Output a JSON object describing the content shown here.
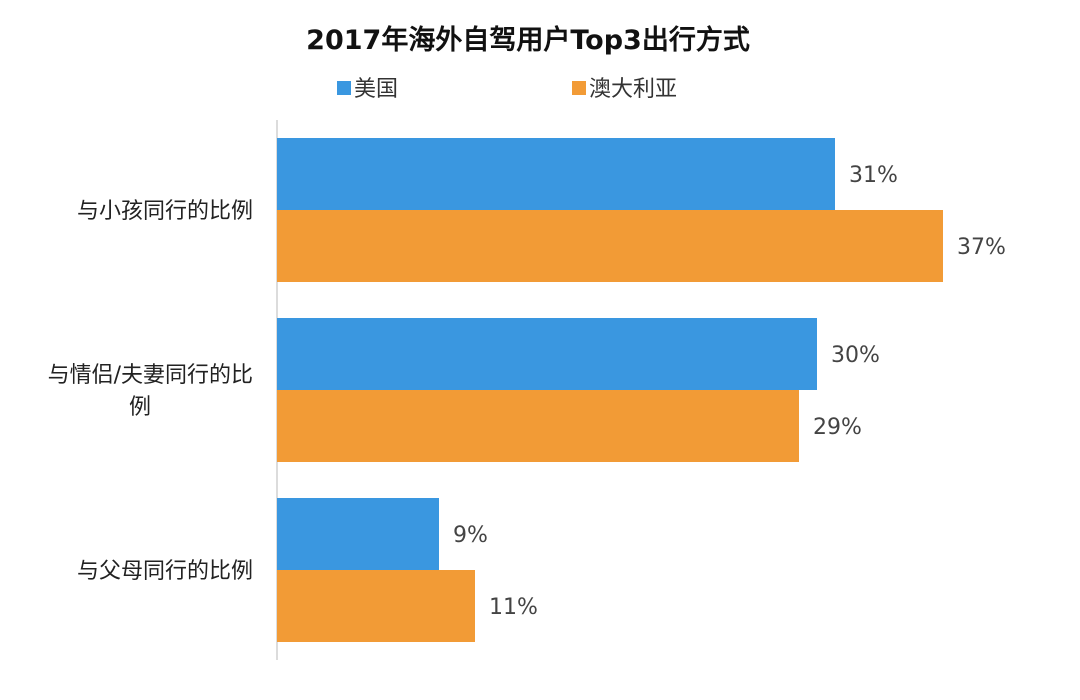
{
  "chart_data": {
    "type": "bar",
    "orientation": "horizontal",
    "title": "2017年海外自驾用户Top3出行方式",
    "categories": [
      [
        "与小孩同行的比例"
      ],
      [
        "与情侣/夫妻同行的比",
        "例"
      ],
      [
        "与父母同行的比例"
      ]
    ],
    "series": [
      {
        "name": "美国",
        "color": "#3A97E0",
        "values": [
          31,
          30,
          9
        ],
        "labels": [
          "31%",
          "30%",
          "9%"
        ]
      },
      {
        "name": "澳大利亚",
        "color": "#F29B36",
        "values": [
          37,
          29,
          11
        ],
        "labels": [
          "37%",
          "29%",
          "11%"
        ]
      }
    ],
    "value_unit": "%",
    "xlim": [
      0,
      40
    ],
    "grid": false,
    "legend_position": "top"
  }
}
